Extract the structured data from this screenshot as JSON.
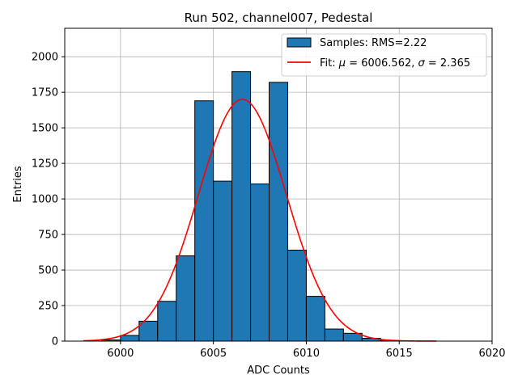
{
  "chart_data": {
    "type": "bar",
    "title": "Run 502, channel007, Pedestal",
    "xlabel": "ADC Counts",
    "ylabel": "Entries",
    "xlim": [
      5997.0,
      6020.0
    ],
    "ylim": [
      0,
      2200
    ],
    "xticks": [
      6000,
      6005,
      6010,
      6015,
      6020
    ],
    "yticks": [
      0,
      250,
      500,
      750,
      1000,
      1250,
      1500,
      1750,
      2000
    ],
    "grid": true,
    "legend_position": "top-right",
    "histogram": {
      "name": "Samples: RMS=2.22",
      "color": "#1f77b4",
      "edge_color": "#000000",
      "bins": [
        {
          "x0": 5999,
          "x1": 6000,
          "count": 8
        },
        {
          "x0": 6000,
          "x1": 6001,
          "count": 40
        },
        {
          "x0": 6001,
          "x1": 6002,
          "count": 140
        },
        {
          "x0": 6002,
          "x1": 6003,
          "count": 280
        },
        {
          "x0": 6003,
          "x1": 6004,
          "count": 600
        },
        {
          "x0": 6004,
          "x1": 6005,
          "count": 1690
        },
        {
          "x0": 6005,
          "x1": 6006,
          "count": 1125
        },
        {
          "x0": 6006,
          "x1": 6007,
          "count": 1895
        },
        {
          "x0": 6007,
          "x1": 6008,
          "count": 1105
        },
        {
          "x0": 6008,
          "x1": 6009,
          "count": 1820
        },
        {
          "x0": 6009,
          "x1": 6010,
          "count": 640
        },
        {
          "x0": 6010,
          "x1": 6011,
          "count": 315
        },
        {
          "x0": 6011,
          "x1": 6012,
          "count": 85
        },
        {
          "x0": 6012,
          "x1": 6013,
          "count": 55
        },
        {
          "x0": 6013,
          "x1": 6014,
          "count": 20
        },
        {
          "x0": 6014,
          "x1": 6015,
          "count": 5
        }
      ]
    },
    "fit": {
      "name": "Fit: μ = 6006.562, σ = 2.365",
      "name_prefix": "Fit: ",
      "mu_symbol": "μ",
      "mu_text": " = 6006.562, ",
      "sigma_symbol": "σ",
      "sigma_text": " = 2.365",
      "color": "#ff0000",
      "mu": 6006.562,
      "sigma": 2.365,
      "amplitude": 1700,
      "x_range": [
        5998,
        6017
      ]
    }
  }
}
